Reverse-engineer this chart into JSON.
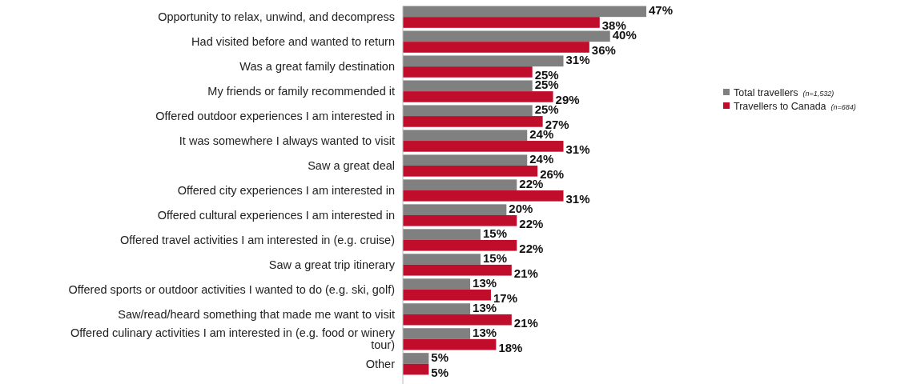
{
  "chart_data": {
    "type": "bar",
    "orientation": "horizontal",
    "categories": [
      "Opportunity to relax, unwind, and decompress",
      "Had visited before and wanted to return",
      "Was a great family destination",
      "My friends or family recommended it",
      "Offered outdoor experiences I am interested in",
      "It was somewhere I always wanted to visit",
      "Saw a great deal",
      "Offered city experiences I am interested in",
      "Offered cultural experiences I am interested in",
      "Offered travel activities I am interested in (e.g. cruise)",
      "Saw a great trip itinerary",
      "Offered sports or outdoor activities I wanted to do (e.g. ski, golf)",
      "Saw/read/heard something that made me want to visit",
      "Offered culinary activities I am interested in (e.g. food or winery tour)",
      "Other"
    ],
    "series": [
      {
        "name": "Total travellers (n=1,532)",
        "color": "#808080",
        "values": [
          47,
          40,
          31,
          25,
          25,
          24,
          24,
          22,
          20,
          15,
          15,
          13,
          13,
          13,
          5
        ],
        "value_labels": [
          "47%",
          "40%",
          "31%",
          "25%",
          "25%",
          "24%",
          "24%",
          "22%",
          "20%",
          "15%",
          "15%",
          "13%",
          "13%",
          "13%",
          "5%"
        ]
      },
      {
        "name": "Travellers to Canada (n=684)",
        "color": "#c00d2b",
        "values": [
          38,
          36,
          25,
          29,
          27,
          31,
          26,
          31,
          22,
          22,
          21,
          17,
          21,
          18,
          5
        ],
        "value_labels": [
          "38%",
          "36%",
          "25%",
          "29%",
          "27%",
          "31%",
          "26%",
          "31%",
          "22%",
          "22%",
          "21%",
          "17%",
          "21%",
          "18%",
          "5%"
        ]
      }
    ],
    "legend": "right"
  }
}
